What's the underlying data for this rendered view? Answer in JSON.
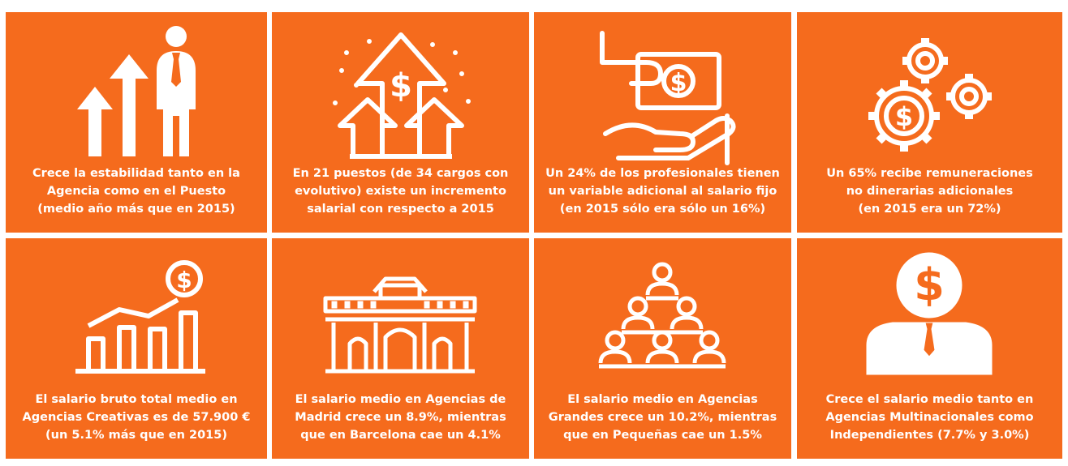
{
  "colors": {
    "tile": "#f56b1d",
    "background": "#ffffff",
    "text": "#ffffff"
  },
  "cards": [
    {
      "icon": "people-growth-arrows-icon",
      "lines": [
        "Crece la estabilidad tanto en la",
        "Agencia como en el Puesto",
        "(medio año más que en 2015)"
      ]
    },
    {
      "icon": "dollar-arrows-up-icon",
      "lines": [
        "En 21 puestos (de 34 cargos con",
        "evolutivo)  existe un incremento",
        "salarial con respecto a 2015"
      ]
    },
    {
      "icon": "hand-giving-money-icon",
      "lines": [
        "Un 24% de los profesionales tienen",
        "un variable adicional al salario fijo",
        "(en 2015 sólo era sólo un 16%)"
      ]
    },
    {
      "icon": "dollar-gears-icon",
      "lines": [
        "Un 65% recibe remuneraciones",
        "no dinerarias adicionales",
        "(en 2015 era un 72%)"
      ]
    },
    {
      "icon": "salary-bar-chart-icon",
      "lines": [
        "El salario bruto total medio en",
        "Agencias Creativas es de 57.900 €",
        "(un 5.1% más que en 2015)"
      ]
    },
    {
      "icon": "puerta-de-alcala-icon",
      "lines": [
        "El salario medio en Agencias de",
        "Madrid crece un 8.9%, mientras",
        "que en Barcelona cae un 4.1%"
      ]
    },
    {
      "icon": "people-pyramid-icon",
      "lines": [
        "El salario medio en Agencias",
        "Grandes crece un 10.2%, mientras",
        "que en Pequeñas cae un 1.5%"
      ]
    },
    {
      "icon": "dollar-businessman-icon",
      "lines": [
        "Crece el salario medio tanto en",
        "Agencias Multinacionales como",
        "Independientes (7.7% y 3.0%)"
      ]
    }
  ]
}
